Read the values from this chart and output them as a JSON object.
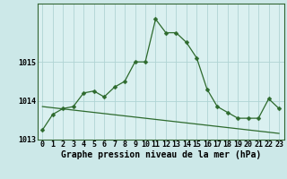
{
  "xlabel": "Graphe pression niveau de la mer (hPa)",
  "background_color": "#cce8e8",
  "plot_bg_color": "#daf0f0",
  "line_color": "#2d6a2d",
  "grid_color": "#b0d4d4",
  "x": [
    0,
    1,
    2,
    3,
    4,
    5,
    6,
    7,
    8,
    9,
    10,
    11,
    12,
    13,
    14,
    15,
    16,
    17,
    18,
    19,
    20,
    21,
    22,
    23
  ],
  "y_main": [
    1013.25,
    1013.65,
    1013.8,
    1013.85,
    1014.2,
    1014.25,
    1014.1,
    1014.35,
    1014.5,
    1015.0,
    1015.0,
    1016.1,
    1015.75,
    1015.75,
    1015.5,
    1015.1,
    1014.3,
    1013.85,
    1013.7,
    1013.55,
    1013.55,
    1013.55,
    1014.05,
    1013.8
  ],
  "y_trend": [
    1013.85,
    1013.82,
    1013.79,
    1013.76,
    1013.73,
    1013.7,
    1013.67,
    1013.64,
    1013.61,
    1013.58,
    1013.55,
    1013.52,
    1013.49,
    1013.46,
    1013.43,
    1013.4,
    1013.37,
    1013.34,
    1013.31,
    1013.28,
    1013.25,
    1013.22,
    1013.19,
    1013.16
  ],
  "ylim": [
    1013.0,
    1016.5
  ],
  "yticks": [
    1013,
    1014,
    1015
  ],
  "xticks": [
    0,
    1,
    2,
    3,
    4,
    5,
    6,
    7,
    8,
    9,
    10,
    11,
    12,
    13,
    14,
    15,
    16,
    17,
    18,
    19,
    20,
    21,
    22,
    23
  ],
  "xlabel_fontsize": 7,
  "tick_fontsize": 6,
  "marker_size": 2.5,
  "linewidth": 0.9
}
